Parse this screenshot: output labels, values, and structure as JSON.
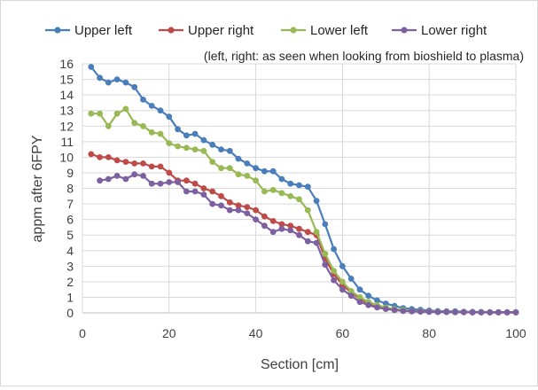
{
  "chart_data": {
    "type": "line",
    "title": "",
    "annotation": "(left, right: as seen when looking from bioshield to plasma)",
    "xlabel": "Section [cm]",
    "ylabel": "appm after 6FPY",
    "xlim": [
      0,
      100
    ],
    "ylim": [
      0,
      16
    ],
    "xticks": [
      "0",
      "20",
      "40",
      "60",
      "80",
      "100"
    ],
    "yticks": [
      "0",
      "1",
      "2",
      "3",
      "4",
      "5",
      "6",
      "7",
      "8",
      "9",
      "10",
      "11",
      "12",
      "13",
      "14",
      "15",
      "16"
    ],
    "grid": true,
    "legend": "top",
    "series": [
      {
        "name": "Upper left",
        "color": "#4a7ebb",
        "points": [
          [
            2,
            15.8
          ],
          [
            4,
            15.1
          ],
          [
            6,
            14.8
          ],
          [
            8,
            15.0
          ],
          [
            10,
            14.8
          ],
          [
            12,
            14.5
          ],
          [
            14,
            13.7
          ],
          [
            16,
            13.3
          ],
          [
            18,
            13.0
          ],
          [
            20,
            12.6
          ],
          [
            22,
            11.8
          ],
          [
            24,
            11.4
          ],
          [
            26,
            11.5
          ],
          [
            28,
            11.1
          ],
          [
            30,
            10.8
          ],
          [
            32,
            10.5
          ],
          [
            34,
            10.4
          ],
          [
            36,
            9.9
          ],
          [
            38,
            9.6
          ],
          [
            40,
            9.3
          ],
          [
            42,
            9.1
          ],
          [
            44,
            9.1
          ],
          [
            46,
            8.6
          ],
          [
            48,
            8.3
          ],
          [
            50,
            8.2
          ],
          [
            52,
            8.1
          ],
          [
            54,
            7.2
          ],
          [
            56,
            5.7
          ],
          [
            58,
            4.1
          ],
          [
            60,
            3.0
          ],
          [
            62,
            2.2
          ],
          [
            64,
            1.5
          ],
          [
            66,
            1.1
          ],
          [
            68,
            0.8
          ],
          [
            70,
            0.6
          ],
          [
            72,
            0.45
          ],
          [
            74,
            0.3
          ],
          [
            76,
            0.25
          ],
          [
            78,
            0.2
          ],
          [
            80,
            0.15
          ],
          [
            82,
            0.12
          ],
          [
            84,
            0.1
          ],
          [
            86,
            0.1
          ],
          [
            88,
            0.08
          ],
          [
            90,
            0.07
          ],
          [
            92,
            0.06
          ],
          [
            94,
            0.05
          ],
          [
            96,
            0.05
          ],
          [
            98,
            0.05
          ],
          [
            100,
            0.05
          ]
        ]
      },
      {
        "name": "Upper right",
        "color": "#be4b48",
        "points": [
          [
            2,
            10.2
          ],
          [
            4,
            10.0
          ],
          [
            6,
            10.0
          ],
          [
            8,
            9.8
          ],
          [
            10,
            9.7
          ],
          [
            12,
            9.6
          ],
          [
            14,
            9.6
          ],
          [
            16,
            9.4
          ],
          [
            18,
            9.4
          ],
          [
            20,
            9.0
          ],
          [
            22,
            8.5
          ],
          [
            24,
            8.5
          ],
          [
            26,
            8.3
          ],
          [
            28,
            8.0
          ],
          [
            30,
            7.8
          ],
          [
            32,
            7.5
          ],
          [
            34,
            7.1
          ],
          [
            36,
            6.9
          ],
          [
            38,
            6.8
          ],
          [
            40,
            6.6
          ],
          [
            42,
            6.2
          ],
          [
            44,
            5.9
          ],
          [
            46,
            5.7
          ],
          [
            48,
            5.6
          ],
          [
            50,
            5.4
          ],
          [
            52,
            5.2
          ],
          [
            54,
            5.0
          ],
          [
            56,
            3.5
          ],
          [
            58,
            2.5
          ],
          [
            60,
            1.8
          ],
          [
            62,
            1.3
          ],
          [
            64,
            0.9
          ],
          [
            66,
            0.6
          ],
          [
            68,
            0.45
          ],
          [
            70,
            0.3
          ],
          [
            72,
            0.2
          ],
          [
            74,
            0.15
          ],
          [
            76,
            0.1
          ],
          [
            78,
            0.1
          ],
          [
            80,
            0.08
          ],
          [
            82,
            0.07
          ],
          [
            84,
            0.06
          ],
          [
            86,
            0.05
          ],
          [
            88,
            0.05
          ],
          [
            90,
            0.04
          ],
          [
            92,
            0.04
          ],
          [
            94,
            0.03
          ],
          [
            96,
            0.03
          ],
          [
            98,
            0.03
          ],
          [
            100,
            0.03
          ]
        ]
      },
      {
        "name": "Lower left",
        "color": "#98b954",
        "points": [
          [
            2,
            12.8
          ],
          [
            4,
            12.8
          ],
          [
            6,
            12.0
          ],
          [
            8,
            12.8
          ],
          [
            10,
            13.1
          ],
          [
            12,
            12.2
          ],
          [
            14,
            12.0
          ],
          [
            16,
            11.6
          ],
          [
            18,
            11.5
          ],
          [
            20,
            10.9
          ],
          [
            22,
            10.7
          ],
          [
            24,
            10.6
          ],
          [
            26,
            10.5
          ],
          [
            28,
            10.4
          ],
          [
            30,
            9.7
          ],
          [
            32,
            9.3
          ],
          [
            34,
            9.3
          ],
          [
            36,
            8.9
          ],
          [
            38,
            8.8
          ],
          [
            40,
            8.5
          ],
          [
            42,
            7.8
          ],
          [
            44,
            7.9
          ],
          [
            46,
            7.7
          ],
          [
            48,
            7.5
          ],
          [
            50,
            7.3
          ],
          [
            52,
            6.6
          ],
          [
            54,
            5.2
          ],
          [
            56,
            3.8
          ],
          [
            58,
            2.7
          ],
          [
            60,
            2.0
          ],
          [
            62,
            1.4
          ],
          [
            64,
            1.0
          ],
          [
            66,
            0.7
          ],
          [
            68,
            0.5
          ],
          [
            70,
            0.35
          ],
          [
            72,
            0.25
          ],
          [
            74,
            0.18
          ],
          [
            76,
            0.12
          ],
          [
            78,
            0.1
          ],
          [
            80,
            0.08
          ],
          [
            82,
            0.07
          ],
          [
            84,
            0.06
          ],
          [
            86,
            0.05
          ],
          [
            88,
            0.05
          ],
          [
            90,
            0.04
          ],
          [
            92,
            0.04
          ],
          [
            94,
            0.03
          ],
          [
            96,
            0.03
          ],
          [
            98,
            0.03
          ],
          [
            100,
            0.03
          ]
        ]
      },
      {
        "name": "Lower right",
        "color": "#7d60a0",
        "points": [
          [
            4,
            8.5
          ],
          [
            6,
            8.6
          ],
          [
            8,
            8.8
          ],
          [
            10,
            8.6
          ],
          [
            12,
            8.9
          ],
          [
            14,
            8.8
          ],
          [
            16,
            8.3
          ],
          [
            18,
            8.3
          ],
          [
            20,
            8.4
          ],
          [
            22,
            8.4
          ],
          [
            24,
            7.8
          ],
          [
            26,
            7.8
          ],
          [
            28,
            7.6
          ],
          [
            30,
            7.0
          ],
          [
            32,
            6.9
          ],
          [
            34,
            6.6
          ],
          [
            36,
            6.6
          ],
          [
            38,
            6.4
          ],
          [
            40,
            6.0
          ],
          [
            42,
            5.6
          ],
          [
            44,
            5.2
          ],
          [
            46,
            5.4
          ],
          [
            48,
            5.3
          ],
          [
            50,
            5.0
          ],
          [
            52,
            4.6
          ],
          [
            54,
            4.5
          ],
          [
            56,
            3.1
          ],
          [
            58,
            2.1
          ],
          [
            60,
            1.5
          ],
          [
            62,
            1.1
          ],
          [
            64,
            0.7
          ],
          [
            66,
            0.5
          ],
          [
            68,
            0.35
          ],
          [
            70,
            0.25
          ],
          [
            72,
            0.18
          ],
          [
            74,
            0.12
          ],
          [
            76,
            0.1
          ],
          [
            78,
            0.08
          ],
          [
            80,
            0.06
          ],
          [
            82,
            0.05
          ],
          [
            84,
            0.05
          ],
          [
            86,
            0.04
          ],
          [
            88,
            0.04
          ],
          [
            90,
            0.03
          ],
          [
            92,
            0.03
          ],
          [
            94,
            0.03
          ],
          [
            96,
            0.03
          ],
          [
            98,
            0.03
          ],
          [
            100,
            0.03
          ]
        ]
      }
    ]
  }
}
